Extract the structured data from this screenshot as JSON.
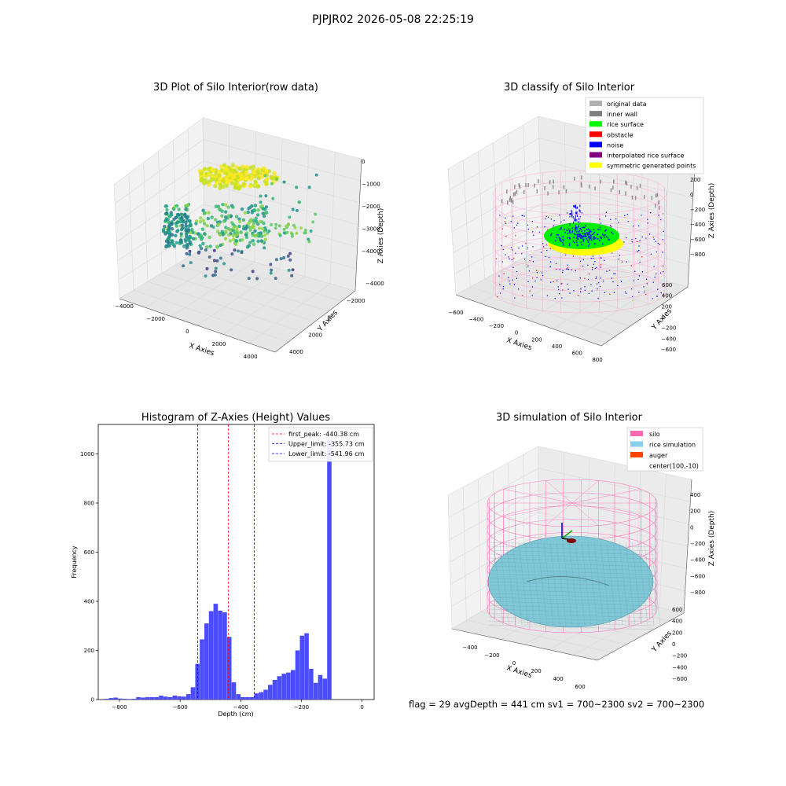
{
  "suptitle": "PJPJR02 2026-05-08 22:25:19",
  "panels": {
    "raw": {
      "title": "3D Plot of Silo Interior(row data)",
      "xlabel": "X Axies",
      "ylabel": "Y Axies",
      "zlabel": "Z Axies (Depth)",
      "xticks": [
        "−4000",
        "−2000",
        "0",
        "2000",
        "4000"
      ],
      "yticks": [
        "−4000",
        "−2000",
        "0",
        "2000",
        "4000"
      ],
      "zticks": [
        "0",
        "−1000",
        "−2000",
        "−3000",
        "−4000"
      ]
    },
    "classify": {
      "title": "3D classify of Silo Interior",
      "xlabel": "X Axies",
      "ylabel": "Y Axies",
      "zlabel": "Z Axies (Depth)",
      "xticks": [
        "−600",
        "−400",
        "−200",
        "0",
        "200",
        "400",
        "600",
        "800"
      ],
      "yticks": [
        "600",
        "400",
        "200",
        "0",
        "−200",
        "−400",
        "−600"
      ],
      "zticks": [
        "400",
        "200",
        "0",
        "−200",
        "−400",
        "−600",
        "−800"
      ],
      "legend": [
        {
          "label": "original data",
          "color": "#b0b0b0"
        },
        {
          "label": "inner wall",
          "color": "#808080"
        },
        {
          "label": "rice surface",
          "color": "#00ff00"
        },
        {
          "label": "obstacle",
          "color": "#ff0000"
        },
        {
          "label": "noise",
          "color": "#0000ff"
        },
        {
          "label": "interpolated rice surface",
          "color": "#800080"
        },
        {
          "label": "symmetric generated points",
          "color": "#ffff00"
        }
      ]
    },
    "simulation": {
      "title": "3D simulation of Silo Interior",
      "xlabel": "X Axies",
      "ylabel": "Y Axies",
      "zlabel": "Z Axies (Depth)",
      "xticks": [
        "−400",
        "−200",
        "0",
        "200",
        "400",
        "600"
      ],
      "yticks": [
        "600",
        "400",
        "200",
        "0",
        "−200",
        "−400",
        "−600"
      ],
      "zticks": [
        "400",
        "200",
        "0",
        "−200",
        "−400",
        "−600",
        "−800"
      ],
      "legend": [
        {
          "label": "silo",
          "color": "#ff69b4"
        },
        {
          "label": "rice simulation",
          "color": "#87ceeb"
        },
        {
          "label": "auger",
          "color": "#ff4500"
        },
        {
          "label": "center(100,-10)",
          "color": ""
        }
      ]
    }
  },
  "footer": "flag = 29  avgDepth = 441 cm  sv1 = 700~2300  sv2 = 700~2300",
  "colors": {
    "hist_bar": "#4b4bff",
    "peak_line": "#ff0000",
    "limit_line": "#0000ff"
  },
  "chart_data": {
    "type": "bar",
    "title": "Histogram of Z-Axies (Height) Values",
    "xlabel": "Depth (cm)",
    "ylabel": "Frequency",
    "xlim": [
      -870,
      40
    ],
    "ylim": [
      0,
      1120
    ],
    "xticks": [
      -800,
      -600,
      -400,
      -200,
      0
    ],
    "yticks": [
      0,
      200,
      400,
      600,
      800,
      1000
    ],
    "bin_start": -850,
    "bin_width": 15,
    "values": [
      3,
      6,
      8,
      4,
      3,
      2,
      3,
      10,
      8,
      10,
      10,
      10,
      16,
      12,
      10,
      16,
      13,
      12,
      22,
      50,
      145,
      245,
      310,
      360,
      390,
      362,
      355,
      255,
      70,
      22,
      10,
      10,
      10,
      25,
      30,
      40,
      60,
      80,
      95,
      105,
      110,
      120,
      200,
      260,
      270,
      125,
      68,
      100,
      85,
      1060
    ],
    "lines": [
      {
        "label": "first_peak: -440.38 cm",
        "x": -440.38,
        "color": "#ff0000"
      },
      {
        "label": "Upper_limit: -355.73 cm",
        "x": -355.73,
        "color": "#0000ff"
      },
      {
        "label": "Lower_limit: -541.96 cm",
        "x": -541.96,
        "color": "#0000ff"
      }
    ],
    "legend_position": "upper right"
  }
}
